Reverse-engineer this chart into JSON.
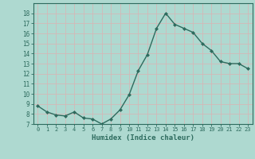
{
  "x": [
    0,
    1,
    2,
    3,
    4,
    5,
    6,
    7,
    8,
    9,
    10,
    11,
    12,
    13,
    14,
    15,
    16,
    17,
    18,
    19,
    20,
    21,
    22,
    23
  ],
  "y": [
    8.8,
    8.2,
    7.9,
    7.8,
    8.2,
    7.6,
    7.5,
    7.0,
    7.5,
    8.4,
    9.9,
    12.3,
    13.9,
    16.5,
    18.0,
    16.9,
    16.5,
    16.1,
    15.0,
    14.3,
    13.2,
    13.0,
    13.0,
    12.5
  ],
  "line_color": "#2e6b5e",
  "marker": "D",
  "marker_size": 2.0,
  "bg_color": "#aed9d0",
  "grid_color": "#c8e8e0",
  "xlabel": "Humidex (Indice chaleur)",
  "ylim": [
    7,
    19
  ],
  "xlim": [
    -0.5,
    23.5
  ],
  "yticks": [
    7,
    8,
    9,
    10,
    11,
    12,
    13,
    14,
    15,
    16,
    17,
    18
  ],
  "xticks": [
    0,
    1,
    2,
    3,
    4,
    5,
    6,
    7,
    8,
    9,
    10,
    11,
    12,
    13,
    14,
    15,
    16,
    17,
    18,
    19,
    20,
    21,
    22,
    23
  ],
  "tick_color": "#2e6b5e",
  "label_color": "#2e6b5e",
  "axis_color": "#2e6b5e",
  "linewidth": 1.0,
  "xlabel_fontsize": 6.5,
  "ytick_fontsize": 5.5,
  "xtick_fontsize": 5.0
}
